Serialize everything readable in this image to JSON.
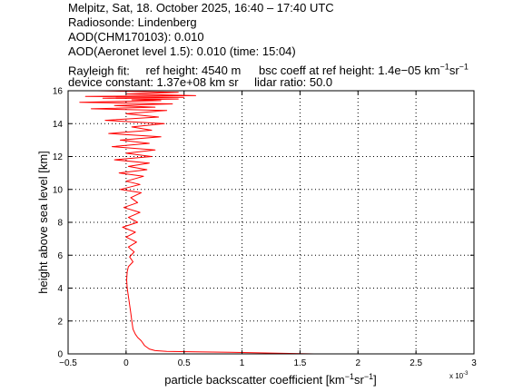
{
  "header": {
    "line1": "Melpitz, Sat, 18. October 2025, 16:40 – 17:40 UTC",
    "line2": "Radiosonde: Lindenberg",
    "line3": "AOD(CHM170103): 0.010",
    "line4": "AOD(Aeronet level 1.5): 0.010   (time: 15:04)",
    "rayleigh_label": "Rayleigh fit:",
    "ref_height": "ref height: 4540 m",
    "bsc_prefix": "bsc coeff at ref height: 1.4e−05 km",
    "bsc_exp1": "−1",
    "bsc_mid": "sr",
    "bsc_exp2": "−1",
    "device_constant": "device constant: 1.37e+08 km sr",
    "lidar_ratio": "lidar ratio: 50.0"
  },
  "axes": {
    "ylabel": "height above sea level [km]",
    "xlabel_prefix": "particle backscatter coefficient [km",
    "xlabel_exp1": "−1",
    "xlabel_mid": "sr",
    "xlabel_exp2": "−1",
    "xlabel_suffix": "]",
    "x_multiplier_base": "x 10",
    "x_multiplier_exp": "-3"
  },
  "colors": {
    "series": "#ff0000",
    "grid": "#000000",
    "axis": "#000000",
    "background": "#ffffff"
  },
  "chart_data": {
    "type": "line",
    "title": "",
    "xlabel": "particle backscatter coefficient [km-1 sr-1]",
    "ylabel": "height above sea level [km]",
    "xlim": [
      -0.5,
      3
    ],
    "ylim": [
      0,
      16
    ],
    "x_scale_factor": "x 10^-3",
    "grid": true,
    "legend": "none",
    "xticks": [
      -0.5,
      0,
      0.5,
      1,
      1.5,
      2,
      2.5,
      3
    ],
    "xtick_labels": [
      "−0.5",
      "0",
      "0.5",
      "1",
      "1.5",
      "2",
      "2.5",
      "3"
    ],
    "yticks": [
      0,
      2,
      4,
      6,
      8,
      10,
      12,
      14,
      16
    ],
    "ytick_labels": [
      "0",
      "2",
      "4",
      "6",
      "8",
      "10",
      "12",
      "14",
      "16"
    ],
    "series": [
      {
        "x": [
          1.62,
          1.25,
          0.9,
          0.6,
          0.35,
          0.25,
          0.2,
          0.16,
          0.13,
          0.1,
          0.08,
          0.06,
          0.05,
          0.04,
          0.03,
          0.02,
          0.01,
          0.005,
          0.01,
          0.02,
          0.06,
          0.03,
          0.07,
          0.02,
          0.09,
          0.0,
          0.08,
          -0.03,
          0.1,
          0.02,
          0.12,
          -0.02,
          0.1,
          0.04,
          0.13,
          -0.05,
          0.12,
          0.0,
          0.15,
          -0.06,
          0.18,
          0.02,
          0.2,
          -0.1,
          0.22,
          0.0,
          0.25,
          -0.12,
          0.2,
          -0.05,
          0.3,
          -0.15,
          0.22,
          0.05,
          0.33,
          -0.18,
          0.28,
          0.0,
          0.35,
          -0.3,
          0.25,
          -0.1,
          0.4,
          -0.4,
          0.3,
          0.05,
          0.45,
          -0.2,
          0.5,
          -0.35,
          0.6,
          0.0,
          0.45,
          -0.25
        ],
        "y": [
          0.0,
          0.05,
          0.1,
          0.12,
          0.15,
          0.2,
          0.3,
          0.5,
          0.8,
          1.0,
          1.2,
          1.5,
          2.0,
          2.5,
          3.0,
          3.5,
          4.0,
          4.5,
          5.0,
          5.3,
          5.6,
          5.9,
          6.2,
          6.5,
          6.8,
          7.1,
          7.4,
          7.7,
          8.0,
          8.3,
          8.6,
          8.9,
          9.2,
          9.5,
          9.8,
          10.0,
          10.3,
          10.5,
          10.8,
          11.0,
          11.2,
          11.4,
          11.6,
          11.8,
          12.0,
          12.2,
          12.4,
          12.6,
          12.8,
          13.0,
          13.2,
          13.4,
          13.6,
          13.8,
          14.0,
          14.2,
          14.4,
          14.6,
          14.8,
          14.9,
          15.0,
          15.1,
          15.2,
          15.3,
          15.4,
          15.45,
          15.5,
          15.55,
          15.6,
          15.65,
          15.7,
          15.8,
          15.9,
          16.0
        ]
      }
    ]
  }
}
